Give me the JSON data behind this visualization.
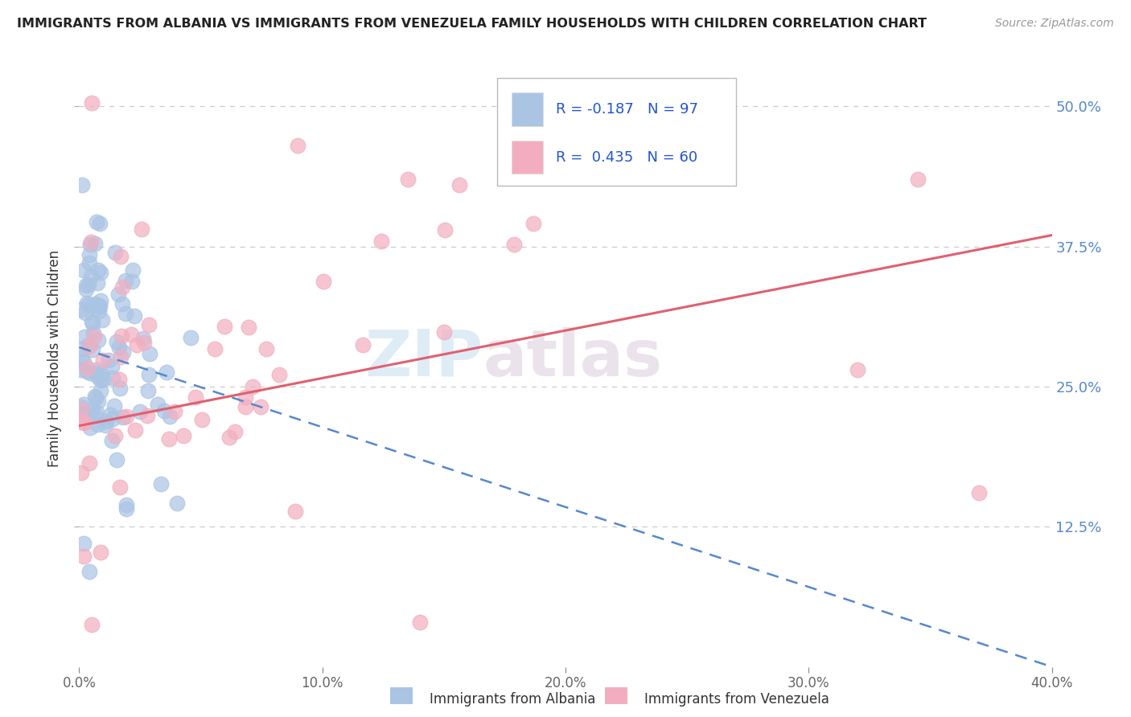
{
  "title": "IMMIGRANTS FROM ALBANIA VS IMMIGRANTS FROM VENEZUELA FAMILY HOUSEHOLDS WITH CHILDREN CORRELATION CHART",
  "source": "Source: ZipAtlas.com",
  "ylabel": "Family Households with Children",
  "x_min": 0.0,
  "x_max": 0.4,
  "y_min": 0.0,
  "y_max": 0.55,
  "x_ticks": [
    0.0,
    0.1,
    0.2,
    0.3,
    0.4
  ],
  "x_tick_labels": [
    "0.0%",
    "10.0%",
    "20.0%",
    "30.0%",
    "40.0%"
  ],
  "y_ticks": [
    0.125,
    0.25,
    0.375,
    0.5
  ],
  "y_tick_labels": [
    "12.5%",
    "25.0%",
    "37.5%",
    "50.0%"
  ],
  "legend_label1": "Immigrants from Albania",
  "legend_label2": "Immigrants from Venezuela",
  "R1": -0.187,
  "N1": 97,
  "R2": 0.435,
  "N2": 60,
  "color_albania": "#aac4e4",
  "color_venezuela": "#f2aec0",
  "line_color_albania": "#5588cc",
  "line_color_venezuela": "#e06070",
  "background_color": "#ffffff",
  "watermark_zip": "ZIP",
  "watermark_atlas": "atlas",
  "grid_color": "#cccccc",
  "ytick_color": "#5588cc",
  "xtick_color": "#666666"
}
